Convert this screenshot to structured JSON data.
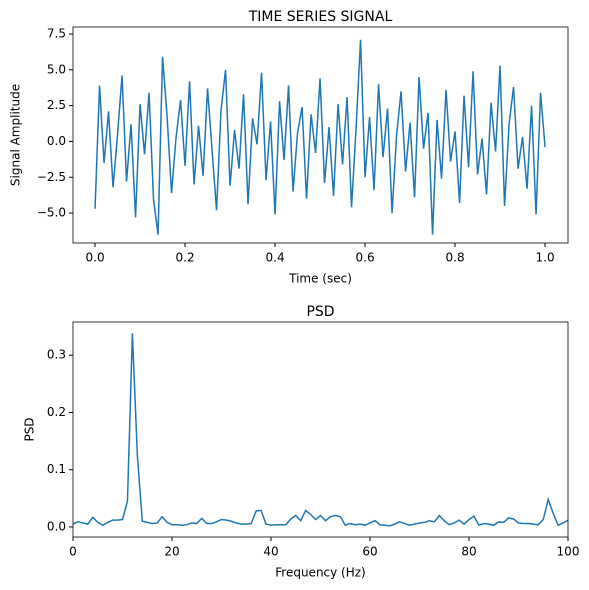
{
  "chart_data": [
    {
      "type": "line",
      "title": "TIME SERIES SIGNAL",
      "xlabel": "Time (sec)",
      "ylabel": "Signal Amplitude",
      "x": [
        0,
        0.01,
        0.02,
        0.03,
        0.04,
        0.05,
        0.06,
        0.07,
        0.08,
        0.09,
        0.1,
        0.11,
        0.12,
        0.13,
        0.14,
        0.15,
        0.16,
        0.17,
        0.18,
        0.19,
        0.2,
        0.21,
        0.22,
        0.23,
        0.24,
        0.25,
        0.26,
        0.27,
        0.28,
        0.29,
        0.3,
        0.31,
        0.32,
        0.33,
        0.34,
        0.35,
        0.36,
        0.37,
        0.38,
        0.39,
        0.4,
        0.41,
        0.42,
        0.43,
        0.44,
        0.45,
        0.46,
        0.47,
        0.48,
        0.49,
        0.5,
        0.51,
        0.52,
        0.53,
        0.54,
        0.55,
        0.56,
        0.57,
        0.58,
        0.59,
        0.6,
        0.61,
        0.62,
        0.63,
        0.64,
        0.65,
        0.66,
        0.67,
        0.68,
        0.69,
        0.7,
        0.71,
        0.72,
        0.73,
        0.74,
        0.75,
        0.76,
        0.77,
        0.78,
        0.79,
        0.8,
        0.81,
        0.82,
        0.83,
        0.84,
        0.85,
        0.86,
        0.87,
        0.88,
        0.89,
        0.9,
        0.91,
        0.92,
        0.93,
        0.94,
        0.95,
        0.96,
        0.97,
        0.98,
        0.99,
        1.0
      ],
      "series": [
        {
          "color": "#1f77b4",
          "values": [
            -4.7,
            3.9,
            -1.5,
            2.1,
            -3.2,
            0.5,
            4.6,
            -2.8,
            1.2,
            -5.3,
            2.6,
            -0.9,
            3.4,
            -4.1,
            -6.5,
            5.9,
            1.8,
            -3.6,
            0.3,
            2.9,
            -1.7,
            4.2,
            -3.0,
            1.1,
            -2.4,
            3.7,
            -0.6,
            -4.8,
            2.2,
            5.0,
            -3.1,
            0.8,
            -1.9,
            3.3,
            -4.4,
            1.6,
            -0.2,
            4.8,
            -2.7,
            1.4,
            -5.1,
            2.8,
            -1.3,
            3.9,
            -3.5,
            0.6,
            2.4,
            -4.0,
            1.9,
            -0.8,
            4.4,
            -2.9,
            1.0,
            -3.8,
            2.6,
            -1.6,
            3.1,
            -4.6,
            0.9,
            7.1,
            -2.5,
            1.7,
            -3.4,
            4.0,
            -1.1,
            2.3,
            -5.0,
            0.4,
            3.5,
            -2.1,
            1.3,
            -3.9,
            4.5,
            -0.5,
            2.0,
            -6.5,
            1.5,
            -2.6,
            3.6,
            -1.4,
            0.7,
            -4.3,
            3.2,
            -1.8,
            4.9,
            -2.3,
            0.2,
            -3.7,
            2.7,
            -0.7,
            5.3,
            -4.5,
            1.2,
            3.8,
            -1.9,
            0.3,
            -3.3,
            2.5,
            -5.1,
            3.4,
            -0.4
          ]
        }
      ],
      "xlim": [
        -0.049,
        1.051
      ],
      "xticks": [
        {
          "value": 0,
          "label": "0.0"
        },
        {
          "value": 0.2,
          "label": "0.2"
        },
        {
          "value": 0.4,
          "label": "0.4"
        },
        {
          "value": 0.6,
          "label": "0.6"
        },
        {
          "value": 0.8,
          "label": "0.8"
        },
        {
          "value": 1.0,
          "label": "1.0"
        }
      ],
      "ylim": [
        -7.09,
        7.99
      ],
      "yticks": [
        {
          "value": -5,
          "label": "−5.0"
        },
        {
          "value": -2.5,
          "label": "−2.5"
        },
        {
          "value": 0,
          "label": "0.0"
        },
        {
          "value": 2.5,
          "label": "2.5"
        },
        {
          "value": 5,
          "label": "5.0"
        },
        {
          "value": 7.5,
          "label": "7.5"
        }
      ]
    },
    {
      "type": "line",
      "title": "PSD",
      "xlabel": "Frequency (Hz)",
      "ylabel": "PSD",
      "x": [
        0,
        1,
        2,
        3,
        4,
        5,
        6,
        7,
        8,
        9,
        10,
        11,
        12,
        13,
        14,
        15,
        16,
        17,
        18,
        19,
        20,
        21,
        22,
        23,
        24,
        25,
        26,
        27,
        28,
        29,
        30,
        31,
        32,
        33,
        34,
        35,
        36,
        37,
        38,
        39,
        40,
        41,
        42,
        43,
        44,
        45,
        46,
        47,
        48,
        49,
        50,
        51,
        52,
        53,
        54,
        55,
        56,
        57,
        58,
        59,
        60,
        61,
        62,
        63,
        64,
        65,
        66,
        67,
        68,
        69,
        70,
        71,
        72,
        73,
        74,
        75,
        76,
        77,
        78,
        79,
        80,
        81,
        82,
        83,
        84,
        85,
        86,
        87,
        88,
        89,
        90,
        91,
        92,
        93,
        94,
        95,
        96,
        97,
        98,
        99,
        100
      ],
      "series": [
        {
          "color": "#1f77b4",
          "values": [
            0.005,
            0.009,
            0.007,
            0.005,
            0.017,
            0.008,
            0.003,
            0.008,
            0.012,
            0.012,
            0.013,
            0.045,
            0.338,
            0.125,
            0.01,
            0.008,
            0.006,
            0.007,
            0.018,
            0.008,
            0.004,
            0.004,
            0.003,
            0.004,
            0.007,
            0.006,
            0.015,
            0.006,
            0.006,
            0.009,
            0.013,
            0.012,
            0.01,
            0.007,
            0.005,
            0.005,
            0.006,
            0.028,
            0.029,
            0.005,
            0.003,
            0.004,
            0.004,
            0.004,
            0.014,
            0.02,
            0.011,
            0.029,
            0.022,
            0.013,
            0.02,
            0.011,
            0.018,
            0.02,
            0.018,
            0.003,
            0.006,
            0.004,
            0.005,
            0.003,
            0.007,
            0.011,
            0.004,
            0.003,
            0.002,
            0.005,
            0.009,
            0.006,
            0.003,
            0.005,
            0.007,
            0.008,
            0.011,
            0.009,
            0.02,
            0.011,
            0.004,
            0.007,
            0.012,
            0.005,
            0.013,
            0.019,
            0.003,
            0.006,
            0.005,
            0.003,
            0.009,
            0.008,
            0.016,
            0.014,
            0.007,
            0.006,
            0.006,
            0.005,
            0.004,
            0.013,
            0.048,
            0.024,
            0.003,
            0.007,
            0.012
          ]
        }
      ],
      "xlim": [
        0,
        100
      ],
      "xticks": [
        0,
        20,
        40,
        60,
        80,
        100
      ],
      "ylim": [
        -0.0175,
        0.358
      ],
      "yticks": [
        {
          "value": 0,
          "label": "0.0"
        },
        {
          "value": 0.1,
          "label": "0.1"
        },
        {
          "value": 0.2,
          "label": "0.2"
        },
        {
          "value": 0.3,
          "label": "0.3"
        }
      ]
    }
  ]
}
